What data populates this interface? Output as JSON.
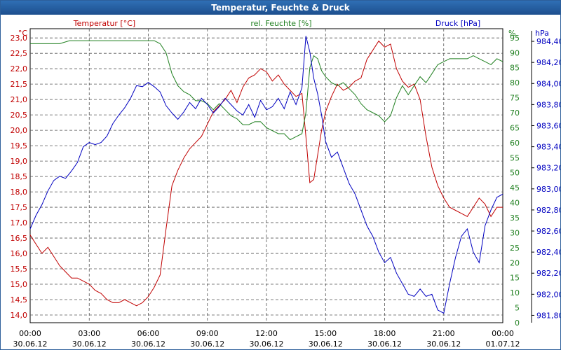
{
  "window_title": "Temperatur, Feuchte & Druck",
  "chart_data": {
    "type": "line",
    "title": "Temperatur, Feuchte & Druck",
    "x_range_hours": [
      0,
      24
    ],
    "x_ticks": [
      {
        "h": 0,
        "time": "00:00",
        "date": "30.06.12"
      },
      {
        "h": 3,
        "time": "03:00",
        "date": "30.06.12"
      },
      {
        "h": 6,
        "time": "06:00",
        "date": "30.06.12"
      },
      {
        "h": 9,
        "time": "09:00",
        "date": "30.06.12"
      },
      {
        "h": 12,
        "time": "12:00",
        "date": "30.06.12"
      },
      {
        "h": 15,
        "time": "15:00",
        "date": "30.06.12"
      },
      {
        "h": 18,
        "time": "18:00",
        "date": "30.06.12"
      },
      {
        "h": 21,
        "time": "21:00",
        "date": "30.06.12"
      },
      {
        "h": 24,
        "time": "00:00",
        "date": "01.07.12"
      }
    ],
    "grid": true,
    "axes": {
      "temperature": {
        "label": "Temperatur [°C]",
        "unit": "°C",
        "color": "#c00000",
        "ylim": [
          13.75,
          23.3
        ],
        "ticks": [
          "23,0",
          "22,5",
          "22,0",
          "21,5",
          "21,0",
          "20,5",
          "20,0",
          "19,5",
          "19,0",
          "18,5",
          "18,0",
          "17,5",
          "17,0",
          "16,5",
          "16,0",
          "15,5",
          "15,0",
          "14,5",
          "14,0"
        ],
        "tick_values": [
          23.0,
          22.5,
          22.0,
          21.5,
          21.0,
          20.5,
          20.0,
          19.5,
          19.0,
          18.5,
          18.0,
          17.5,
          17.0,
          16.5,
          16.0,
          15.5,
          15.0,
          14.5,
          14.0
        ]
      },
      "humidity": {
        "label": "rel. Feuchte [%]",
        "unit": "%",
        "color": "#208020",
        "ylim": [
          0,
          98
        ],
        "ticks": [
          "95",
          "90",
          "85",
          "80",
          "75",
          "70",
          "65",
          "60",
          "55",
          "50",
          "45",
          "40",
          "35",
          "30",
          "25",
          "20",
          "15",
          "10",
          "5",
          "0"
        ],
        "tick_values": [
          95,
          90,
          85,
          80,
          75,
          70,
          65,
          60,
          55,
          50,
          45,
          40,
          35,
          30,
          25,
          20,
          15,
          10,
          5,
          0
        ]
      },
      "pressure": {
        "label": "Druck [hPa]",
        "unit": "hPa",
        "color": "#0000c0",
        "ylim": [
          981.73,
          984.52
        ],
        "ticks": [
          "984,40",
          "984,20",
          "984,00",
          "983,80",
          "983,60",
          "983,40",
          "983,20",
          "983,00",
          "982,80",
          "982,60",
          "982,40",
          "982,20",
          "982,00",
          "981,80"
        ],
        "tick_values": [
          984.4,
          984.2,
          984.0,
          983.8,
          983.6,
          983.4,
          983.2,
          983.0,
          982.8,
          982.6,
          982.4,
          982.2,
          982.0,
          981.8
        ]
      }
    },
    "series": [
      {
        "name": "Temperatur [°C]",
        "axis": "temperature",
        "color": "#c00000",
        "x": [
          0,
          0.3,
          0.6,
          0.9,
          1.2,
          1.5,
          1.8,
          2.1,
          2.4,
          2.7,
          3.0,
          3.3,
          3.6,
          3.9,
          4.2,
          4.5,
          4.8,
          5.1,
          5.4,
          5.7,
          6.0,
          6.3,
          6.6,
          6.9,
          7.2,
          7.5,
          7.8,
          8.1,
          8.4,
          8.7,
          9.0,
          9.3,
          9.6,
          9.9,
          10.2,
          10.5,
          10.8,
          11.1,
          11.4,
          11.7,
          12.0,
          12.3,
          12.6,
          12.9,
          13.2,
          13.5,
          13.8,
          14.0,
          14.2,
          14.4,
          14.6,
          14.8,
          15.0,
          15.3,
          15.6,
          15.9,
          16.2,
          16.5,
          16.8,
          17.1,
          17.4,
          17.7,
          18.0,
          18.3,
          18.6,
          18.9,
          19.2,
          19.5,
          19.8,
          20.1,
          20.4,
          20.7,
          21.0,
          21.3,
          21.6,
          21.9,
          22.2,
          22.5,
          22.8,
          23.1,
          23.4,
          23.7,
          24.0
        ],
        "values": [
          16.6,
          16.3,
          16.0,
          16.2,
          15.9,
          15.6,
          15.4,
          15.2,
          15.2,
          15.1,
          15.0,
          14.8,
          14.7,
          14.5,
          14.4,
          14.4,
          14.5,
          14.4,
          14.3,
          14.4,
          14.6,
          14.9,
          15.3,
          16.8,
          18.2,
          18.7,
          19.1,
          19.4,
          19.6,
          19.8,
          20.2,
          20.6,
          20.8,
          21.0,
          21.3,
          20.9,
          21.4,
          21.7,
          21.8,
          22.0,
          21.9,
          21.6,
          21.8,
          21.5,
          21.3,
          21.1,
          21.2,
          19.8,
          18.3,
          18.4,
          19.2,
          20.0,
          20.6,
          21.1,
          21.5,
          21.3,
          21.4,
          21.6,
          21.7,
          22.3,
          22.6,
          22.9,
          22.7,
          22.8,
          22.0,
          21.6,
          21.4,
          21.5,
          21.0,
          19.8,
          18.8,
          18.2,
          17.8,
          17.5,
          17.4,
          17.3,
          17.2,
          17.5,
          17.8,
          17.6,
          17.2,
          17.5,
          17.5
        ]
      },
      {
        "name": "rel. Feuchte [%]",
        "axis": "humidity",
        "color": "#208020",
        "x": [
          0,
          0.5,
          1.0,
          1.5,
          2.0,
          2.5,
          3.0,
          3.5,
          4.0,
          4.5,
          5.0,
          5.5,
          6.0,
          6.3,
          6.6,
          6.9,
          7.2,
          7.5,
          7.8,
          8.1,
          8.4,
          8.7,
          9.0,
          9.3,
          9.6,
          9.9,
          10.2,
          10.5,
          10.8,
          11.1,
          11.4,
          11.7,
          12.0,
          12.3,
          12.6,
          12.9,
          13.2,
          13.5,
          13.8,
          14.0,
          14.2,
          14.4,
          14.6,
          14.8,
          15.0,
          15.3,
          15.6,
          15.9,
          16.2,
          16.5,
          16.8,
          17.1,
          17.4,
          17.7,
          18.0,
          18.3,
          18.6,
          18.9,
          19.2,
          19.5,
          19.8,
          20.1,
          20.4,
          20.7,
          21.0,
          21.3,
          21.6,
          21.9,
          22.2,
          22.5,
          22.8,
          23.1,
          23.4,
          23.7,
          24.0
        ],
        "values": [
          93,
          93,
          93,
          93,
          94,
          94,
          94,
          94,
          94,
          94,
          94,
          94,
          94,
          94,
          93,
          90,
          83,
          79,
          77,
          76,
          74,
          74,
          73,
          71,
          73,
          71,
          69,
          68,
          66,
          66,
          67,
          67,
          65,
          64,
          63,
          63,
          61,
          62,
          63,
          70,
          85,
          89,
          88,
          84,
          82,
          80,
          79,
          80,
          78,
          76,
          73,
          71,
          70,
          69,
          67,
          69,
          75,
          79,
          76,
          79,
          82,
          80,
          83,
          86,
          87,
          88,
          88,
          88,
          88,
          89,
          88,
          87,
          86,
          88,
          87
        ]
      },
      {
        "name": "Druck [hPa]",
        "axis": "pressure",
        "color": "#0000c0",
        "x": [
          0,
          0.3,
          0.6,
          0.9,
          1.2,
          1.5,
          1.8,
          2.1,
          2.4,
          2.7,
          3.0,
          3.3,
          3.6,
          3.9,
          4.2,
          4.5,
          4.8,
          5.1,
          5.4,
          5.7,
          6.0,
          6.3,
          6.6,
          6.9,
          7.2,
          7.5,
          7.8,
          8.1,
          8.4,
          8.7,
          9.0,
          9.3,
          9.6,
          9.9,
          10.2,
          10.5,
          10.8,
          11.1,
          11.4,
          11.7,
          12.0,
          12.3,
          12.6,
          12.9,
          13.2,
          13.5,
          13.8,
          14.0,
          14.2,
          14.4,
          14.6,
          14.8,
          15.0,
          15.3,
          15.6,
          15.9,
          16.2,
          16.5,
          16.8,
          17.1,
          17.4,
          17.7,
          18.0,
          18.3,
          18.6,
          18.9,
          19.2,
          19.5,
          19.8,
          20.1,
          20.4,
          20.7,
          21.0,
          21.3,
          21.6,
          21.9,
          22.2,
          22.5,
          22.8,
          23.1,
          23.4,
          23.7,
          24.0
        ],
        "values": [
          982.62,
          982.75,
          982.85,
          982.98,
          983.08,
          983.12,
          983.1,
          983.17,
          983.25,
          983.4,
          983.44,
          983.42,
          983.44,
          983.5,
          983.62,
          983.7,
          983.77,
          983.86,
          983.98,
          983.97,
          984.01,
          983.97,
          983.92,
          983.79,
          983.72,
          983.66,
          983.73,
          983.82,
          983.76,
          983.86,
          983.8,
          983.72,
          983.78,
          983.86,
          983.8,
          983.74,
          983.7,
          983.8,
          983.68,
          983.84,
          983.75,
          983.78,
          983.86,
          983.76,
          983.92,
          983.8,
          983.96,
          984.45,
          984.3,
          984.05,
          983.9,
          983.7,
          983.45,
          983.3,
          983.35,
          983.2,
          983.05,
          982.95,
          982.8,
          982.65,
          982.55,
          982.4,
          982.3,
          982.35,
          982.2,
          982.1,
          982.0,
          981.98,
          982.05,
          981.98,
          982.0,
          981.85,
          981.82,
          982.1,
          982.35,
          982.55,
          982.62,
          982.4,
          982.3,
          982.65,
          982.8,
          982.92,
          982.95
        ]
      }
    ]
  }
}
